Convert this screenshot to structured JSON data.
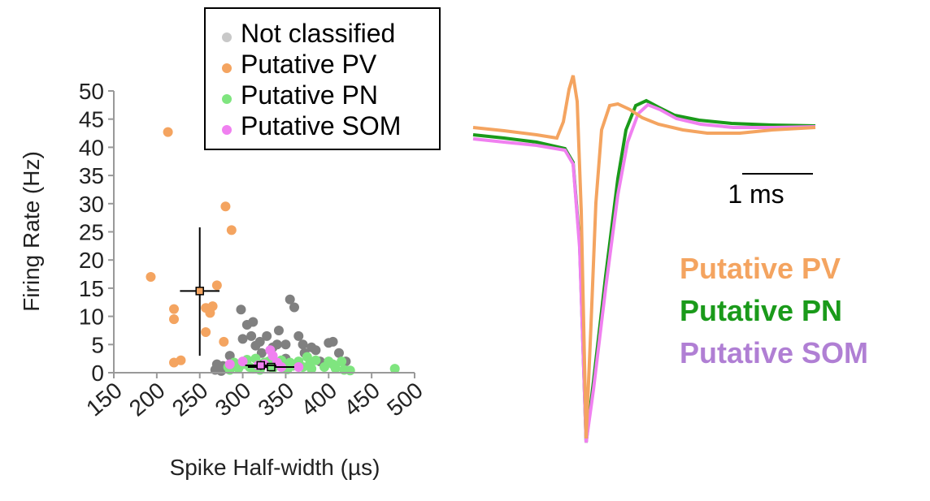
{
  "chart_data": [
    {
      "type": "scatter",
      "xlabel": "Spike Half-width (µs)",
      "ylabel": "Firing Rate (Hz)",
      "xlim": [
        150,
        500
      ],
      "ylim": [
        0,
        50
      ],
      "xticks": [
        "150",
        "200",
        "250",
        "300",
        "350",
        "400",
        "450",
        "500"
      ],
      "yticks": [
        "0",
        "5",
        "10",
        "15",
        "20",
        "25",
        "30",
        "35",
        "40",
        "45",
        "50"
      ],
      "legend_position": "top",
      "series": [
        {
          "name": "Not classified",
          "color": "#808080",
          "points": [
            [
              270,
              1.5
            ],
            [
              277,
              1.2
            ],
            [
              285,
              3
            ],
            [
              298,
              11.2
            ],
            [
              300,
              6
            ],
            [
              305,
              8.5
            ],
            [
              310,
              6.5
            ],
            [
              312,
              9
            ],
            [
              315,
              4.8
            ],
            [
              320,
              5.5
            ],
            [
              322,
              3.5
            ],
            [
              328,
              6.5
            ],
            [
              335,
              4.5
            ],
            [
              340,
              5
            ],
            [
              342,
              7.5
            ],
            [
              350,
              5
            ],
            [
              350,
              2.5
            ],
            [
              355,
              13
            ],
            [
              360,
              11.6
            ],
            [
              365,
              6.5
            ],
            [
              370,
              5
            ],
            [
              372,
              3.5
            ],
            [
              380,
              4.5
            ],
            [
              385,
              4
            ],
            [
              390,
              2
            ],
            [
              400,
              5.3
            ],
            [
              405,
              5.5
            ],
            [
              412,
              3.5
            ],
            [
              420,
              2
            ],
            [
              268,
              0.5
            ],
            [
              275,
              0.3
            ]
          ]
        },
        {
          "name": "Putative PV",
          "color": "#F4A460",
          "points": [
            [
              213,
              42.7
            ],
            [
              280,
              29.5
            ],
            [
              287,
              25.3
            ],
            [
              193,
              17
            ],
            [
              270,
              15.5
            ],
            [
              220,
              11.3
            ],
            [
              257,
              11.5
            ],
            [
              265,
              11.8
            ],
            [
              262,
              10.6
            ],
            [
              220,
              9.5
            ],
            [
              257,
              7.2
            ],
            [
              278,
              5.5
            ],
            [
              220,
              1.8
            ],
            [
              228,
              2.2
            ]
          ]
        },
        {
          "name": "Putative PN",
          "color": "#7FE57F",
          "points": [
            [
              283,
              1
            ],
            [
              285,
              0.5
            ],
            [
              290,
              1.8
            ],
            [
              295,
              0.8
            ],
            [
              300,
              1.5
            ],
            [
              305,
              2.3
            ],
            [
              308,
              1
            ],
            [
              312,
              0.7
            ],
            [
              315,
              2.5
            ],
            [
              318,
              1.2
            ],
            [
              320,
              0.5
            ],
            [
              325,
              1.8
            ],
            [
              330,
              2
            ],
            [
              335,
              0.8
            ],
            [
              340,
              1.5
            ],
            [
              345,
              2.2
            ],
            [
              348,
              1
            ],
            [
              352,
              0.6
            ],
            [
              355,
              1.8
            ],
            [
              358,
              1.2
            ],
            [
              365,
              2
            ],
            [
              370,
              1
            ],
            [
              375,
              2.8
            ],
            [
              378,
              1.5
            ],
            [
              380,
              0.7
            ],
            [
              385,
              2.2
            ],
            [
              395,
              1
            ],
            [
              400,
              2
            ],
            [
              405,
              1.5
            ],
            [
              408,
              0.8
            ],
            [
              415,
              2
            ],
            [
              418,
              0.5
            ],
            [
              425,
              0.4
            ],
            [
              477,
              0.7
            ]
          ]
        },
        {
          "name": "Putative SOM",
          "color": "#F080F0",
          "points": [
            [
              285,
              1.5
            ],
            [
              300,
              2
            ],
            [
              318,
              1.3
            ],
            [
              325,
              1.5
            ],
            [
              332,
              4
            ],
            [
              335,
              3
            ],
            [
              340,
              1.8
            ],
            [
              345,
              1
            ],
            [
              365,
              1
            ]
          ]
        }
      ],
      "summary": [
        {
          "series": "Putative PV",
          "x": 250,
          "y": 14.5,
          "x_err": 23,
          "y_err_low": 11.5,
          "y_err_high": 11.3,
          "color": "#F4A460"
        },
        {
          "series": "Putative PN",
          "x": 333,
          "y": 1.0,
          "x_err": 27,
          "y_err": 0.7,
          "color": "#7FE57F"
        },
        {
          "series": "Putative SOM",
          "x": 321,
          "y": 1.3,
          "x_err": 18,
          "y_err": 0.8,
          "color": "#F080F0"
        }
      ]
    },
    {
      "type": "line",
      "scale_bar_label": "1 ms",
      "series": [
        {
          "name": "Putative PV",
          "color": "#F4A460",
          "label_color": "#F4A460"
        },
        {
          "name": "Putative PN",
          "color": "#1A9A1A",
          "label_color": "#1A9A1A"
        },
        {
          "name": "Putative SOM",
          "color": "#F080F0",
          "label_color": "#B07FD4"
        }
      ]
    }
  ]
}
